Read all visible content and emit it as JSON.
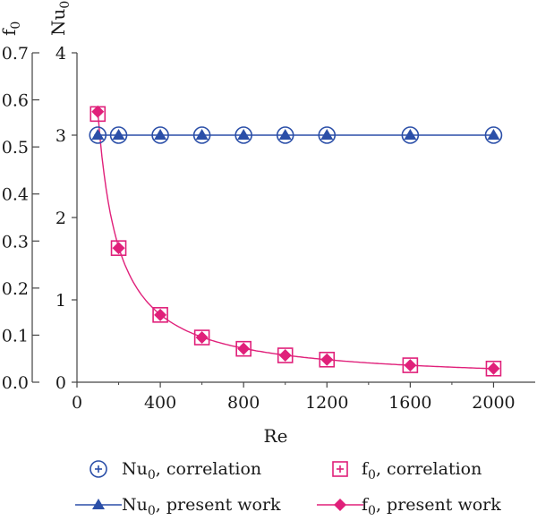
{
  "chart_data": {
    "type": "line",
    "xlabel": "Re",
    "y_left_outer": {
      "label": "f",
      "sub": "0",
      "ticks": [
        "0.0",
        "0.1",
        "0.2",
        "0.3",
        "0.4",
        "0.5",
        "0.6",
        "0.7"
      ],
      "ylim": [
        0,
        0.7
      ]
    },
    "y_left_inner": {
      "label": "Nu",
      "sub": "0",
      "ticks": [
        "0",
        "1",
        "2",
        "3",
        "4"
      ],
      "ylim": [
        0,
        4
      ]
    },
    "xlim": [
      0,
      2200
    ],
    "xticks": [
      "0",
      "400",
      "800",
      "1200",
      "1600",
      "2000"
    ],
    "xtick_values": [
      0,
      400,
      800,
      1200,
      1600,
      2000
    ],
    "series": [
      {
        "name": "Nu",
        "name_sub": "0",
        "name_suffix": ", correlation",
        "axis": "nu",
        "marker": "circle-plus",
        "color": "#2b4fa8",
        "x": [
          100,
          200,
          400,
          600,
          800,
          1000,
          1200,
          1600,
          2000
        ],
        "y": [
          3.0,
          3.0,
          3.0,
          3.0,
          3.0,
          3.0,
          3.0,
          3.0,
          3.0
        ]
      },
      {
        "name": "f",
        "name_sub": "0",
        "name_suffix": ", correlation",
        "axis": "f",
        "marker": "square-plus",
        "color": "#e0207a",
        "x": [
          100,
          200,
          400,
          600,
          800,
          1000,
          1200,
          1600,
          2000
        ],
        "y": [
          0.57,
          0.285,
          0.143,
          0.095,
          0.071,
          0.057,
          0.048,
          0.036,
          0.029
        ]
      },
      {
        "name": "Nu",
        "name_sub": "0",
        "name_suffix": ", present work",
        "axis": "nu",
        "marker": "triangle",
        "color": "#2b4fa8",
        "line": true,
        "x": [
          100,
          200,
          400,
          600,
          800,
          1000,
          1200,
          1600,
          2000
        ],
        "y": [
          3.0,
          3.0,
          3.0,
          3.0,
          3.0,
          3.0,
          3.0,
          3.0,
          3.0
        ]
      },
      {
        "name": "f",
        "name_sub": "0",
        "name_suffix": ", present work",
        "axis": "f",
        "marker": "diamond",
        "color": "#e0207a",
        "line": true,
        "x": [
          100,
          200,
          400,
          600,
          800,
          1000,
          1200,
          1600,
          2000
        ],
        "y": [
          0.575,
          0.285,
          0.143,
          0.095,
          0.071,
          0.057,
          0.048,
          0.036,
          0.029
        ]
      }
    ],
    "grid": false,
    "legend_position": "bottom"
  }
}
